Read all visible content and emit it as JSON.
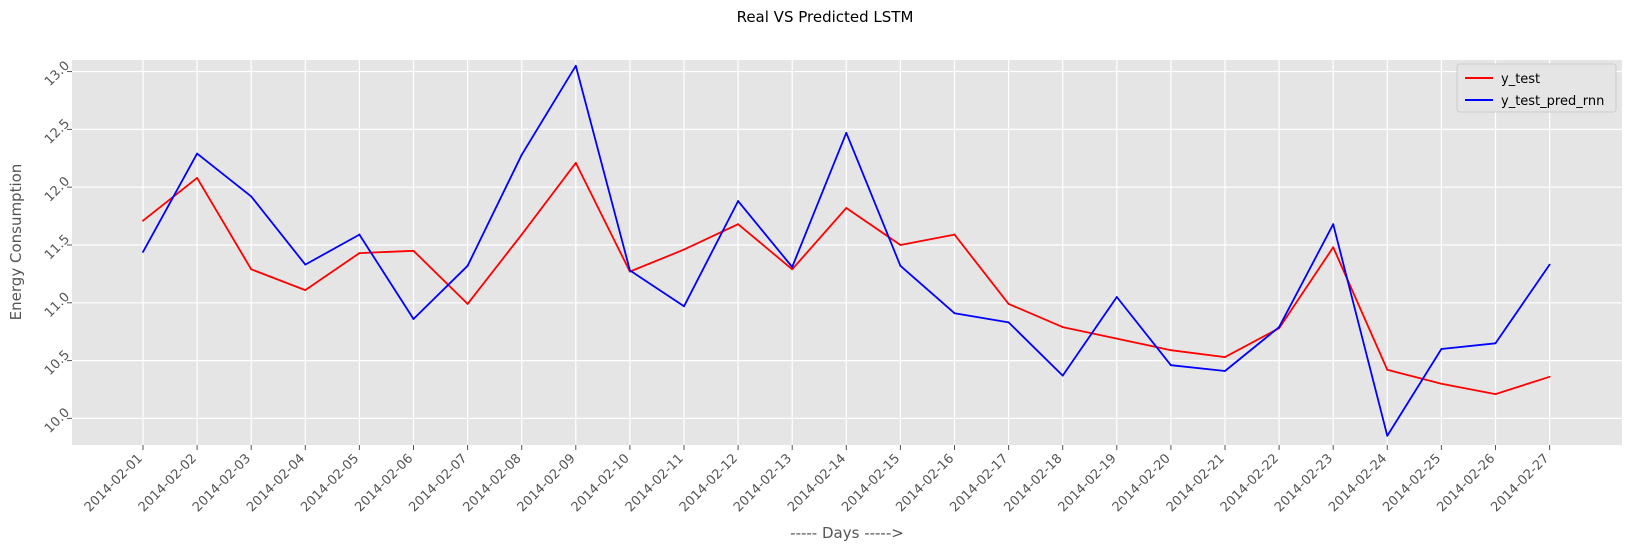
{
  "chart_data": {
    "type": "line",
    "title": "Real VS Predicted LSTM",
    "xlabel": "----- Days ----->",
    "ylabel": "Energy Consumption",
    "x": [
      "2014-02-01",
      "2014-02-02",
      "2014-02-03",
      "2014-02-04",
      "2014-02-05",
      "2014-02-06",
      "2014-02-07",
      "2014-02-08",
      "2014-02-09",
      "2014-02-10",
      "2014-02-11",
      "2014-02-12",
      "2014-02-13",
      "2014-02-14",
      "2014-02-15",
      "2014-02-16",
      "2014-02-17",
      "2014-02-18",
      "2014-02-19",
      "2014-02-20",
      "2014-02-21",
      "2014-02-22",
      "2014-02-23",
      "2014-02-24",
      "2014-02-25",
      "2014-02-26",
      "2014-02-27"
    ],
    "yticks": [
      "10.0",
      "10.5",
      "11.0",
      "11.5",
      "12.0",
      "12.5",
      "13.0"
    ],
    "ylim": [
      9.77,
      13.1
    ],
    "grid": true,
    "legend_position": "top-right",
    "background": "#e5e5e5",
    "series": [
      {
        "name": "y_test",
        "color": "#ff0000",
        "values": [
          11.71,
          12.08,
          11.29,
          11.11,
          11.43,
          11.45,
          10.99,
          11.59,
          12.21,
          11.27,
          11.46,
          11.68,
          11.29,
          11.82,
          11.5,
          11.59,
          10.99,
          10.79,
          10.69,
          10.59,
          10.53,
          10.78,
          11.48,
          10.42,
          10.3,
          10.21,
          10.36
        ]
      },
      {
        "name": "y_test_pred_rnn",
        "color": "#0000ff",
        "values": [
          11.44,
          12.29,
          11.92,
          11.33,
          11.59,
          10.86,
          11.32,
          12.28,
          13.05,
          11.28,
          10.97,
          11.88,
          11.31,
          12.47,
          11.32,
          10.91,
          10.83,
          10.37,
          11.05,
          10.46,
          10.41,
          10.79,
          11.68,
          9.85,
          10.6,
          10.65,
          11.33
        ]
      }
    ]
  }
}
